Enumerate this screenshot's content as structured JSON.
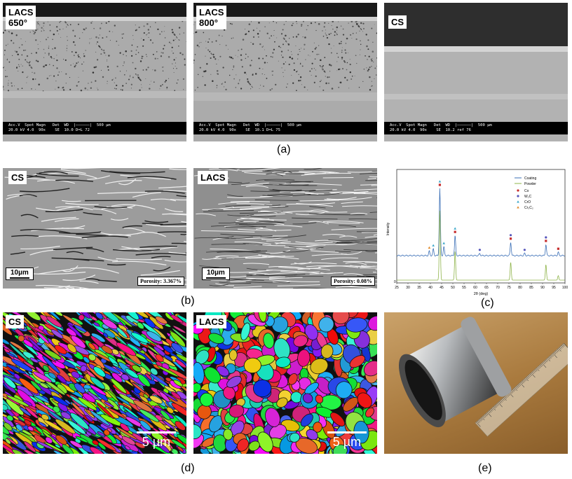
{
  "row_a": {
    "caption": "(a)",
    "panels": [
      {
        "label": "LACS\n650°",
        "databar": "Acc.V  Spot Magn   Det  WD  |——————|  500 µm\n20.0 kV 4.0  90x    SE  10.0 D=L 72"
      },
      {
        "label": "LACS\n800°",
        "databar": "Acc.V  Spot Magn   Det  WD  |——————|  500 µm\n20.0 kV 4.0  90x    SE  10.1 D=L 75"
      },
      {
        "label": "CS",
        "databar": "Acc.V  Spot Magn   Det  WD  |——————|  500 µm\n20.0 kV 4.0  90x    SE  10.2 ref 76"
      }
    ]
  },
  "row_b": {
    "caption": "(b)",
    "panels": [
      {
        "label": "CS",
        "scale": "10µm",
        "porosity": "Porosity: 3.367%"
      },
      {
        "label": "LACS",
        "scale": "10µm",
        "porosity": "Porosity: 0.08%"
      }
    ]
  },
  "row_c": {
    "caption": "(c)",
    "chart_data": {
      "type": "line",
      "xlabel": "2θ (deg)",
      "ylabel": "Intensity",
      "xlim": [
        25,
        100
      ],
      "xticks": [
        "25",
        "30",
        "35",
        "40",
        "45",
        "50",
        "55",
        "60",
        "65",
        "70",
        "75",
        "80",
        "85",
        "90",
        "95",
        "100"
      ],
      "legend": {
        "position": "top-right",
        "lines": [
          {
            "name": "Coating",
            "color": "#3b6fb6"
          },
          {
            "name": "Powder",
            "color": "#8fb44a"
          }
        ],
        "markers": [
          {
            "name": "Co",
            "color": "#c62d2d"
          },
          {
            "name": "W₂C",
            "color": "#5555bb"
          },
          {
            "name": "CrO",
            "color": "#3da7c9"
          },
          {
            "name": "Cr₃C₂",
            "color": "#e08a2c"
          }
        ]
      },
      "series": [
        {
          "name": "Coating",
          "color": "#3b6fb6",
          "peaks": [
            [
              39.5,
              4
            ],
            [
              41.3,
              6
            ],
            [
              44.2,
              60
            ],
            [
              46.0,
              8
            ],
            [
              51.0,
              18
            ],
            [
              62,
              2
            ],
            [
              75.8,
              12
            ],
            [
              82,
              2
            ],
            [
              91.5,
              10
            ],
            [
              97,
              3
            ]
          ]
        },
        {
          "name": "Powder",
          "color": "#8fb44a",
          "peaks": [
            [
              44.2,
              62
            ],
            [
              51.0,
              26
            ],
            [
              75.8,
              16
            ],
            [
              91.5,
              14
            ],
            [
              97,
              4
            ]
          ]
        }
      ]
    }
  },
  "row_d": {
    "caption": "(d)",
    "panels": [
      {
        "label": "CS",
        "scale": "5 µm"
      },
      {
        "label": "LACS",
        "scale": "5 µm"
      }
    ]
  },
  "row_e": {
    "caption": "(e)"
  }
}
